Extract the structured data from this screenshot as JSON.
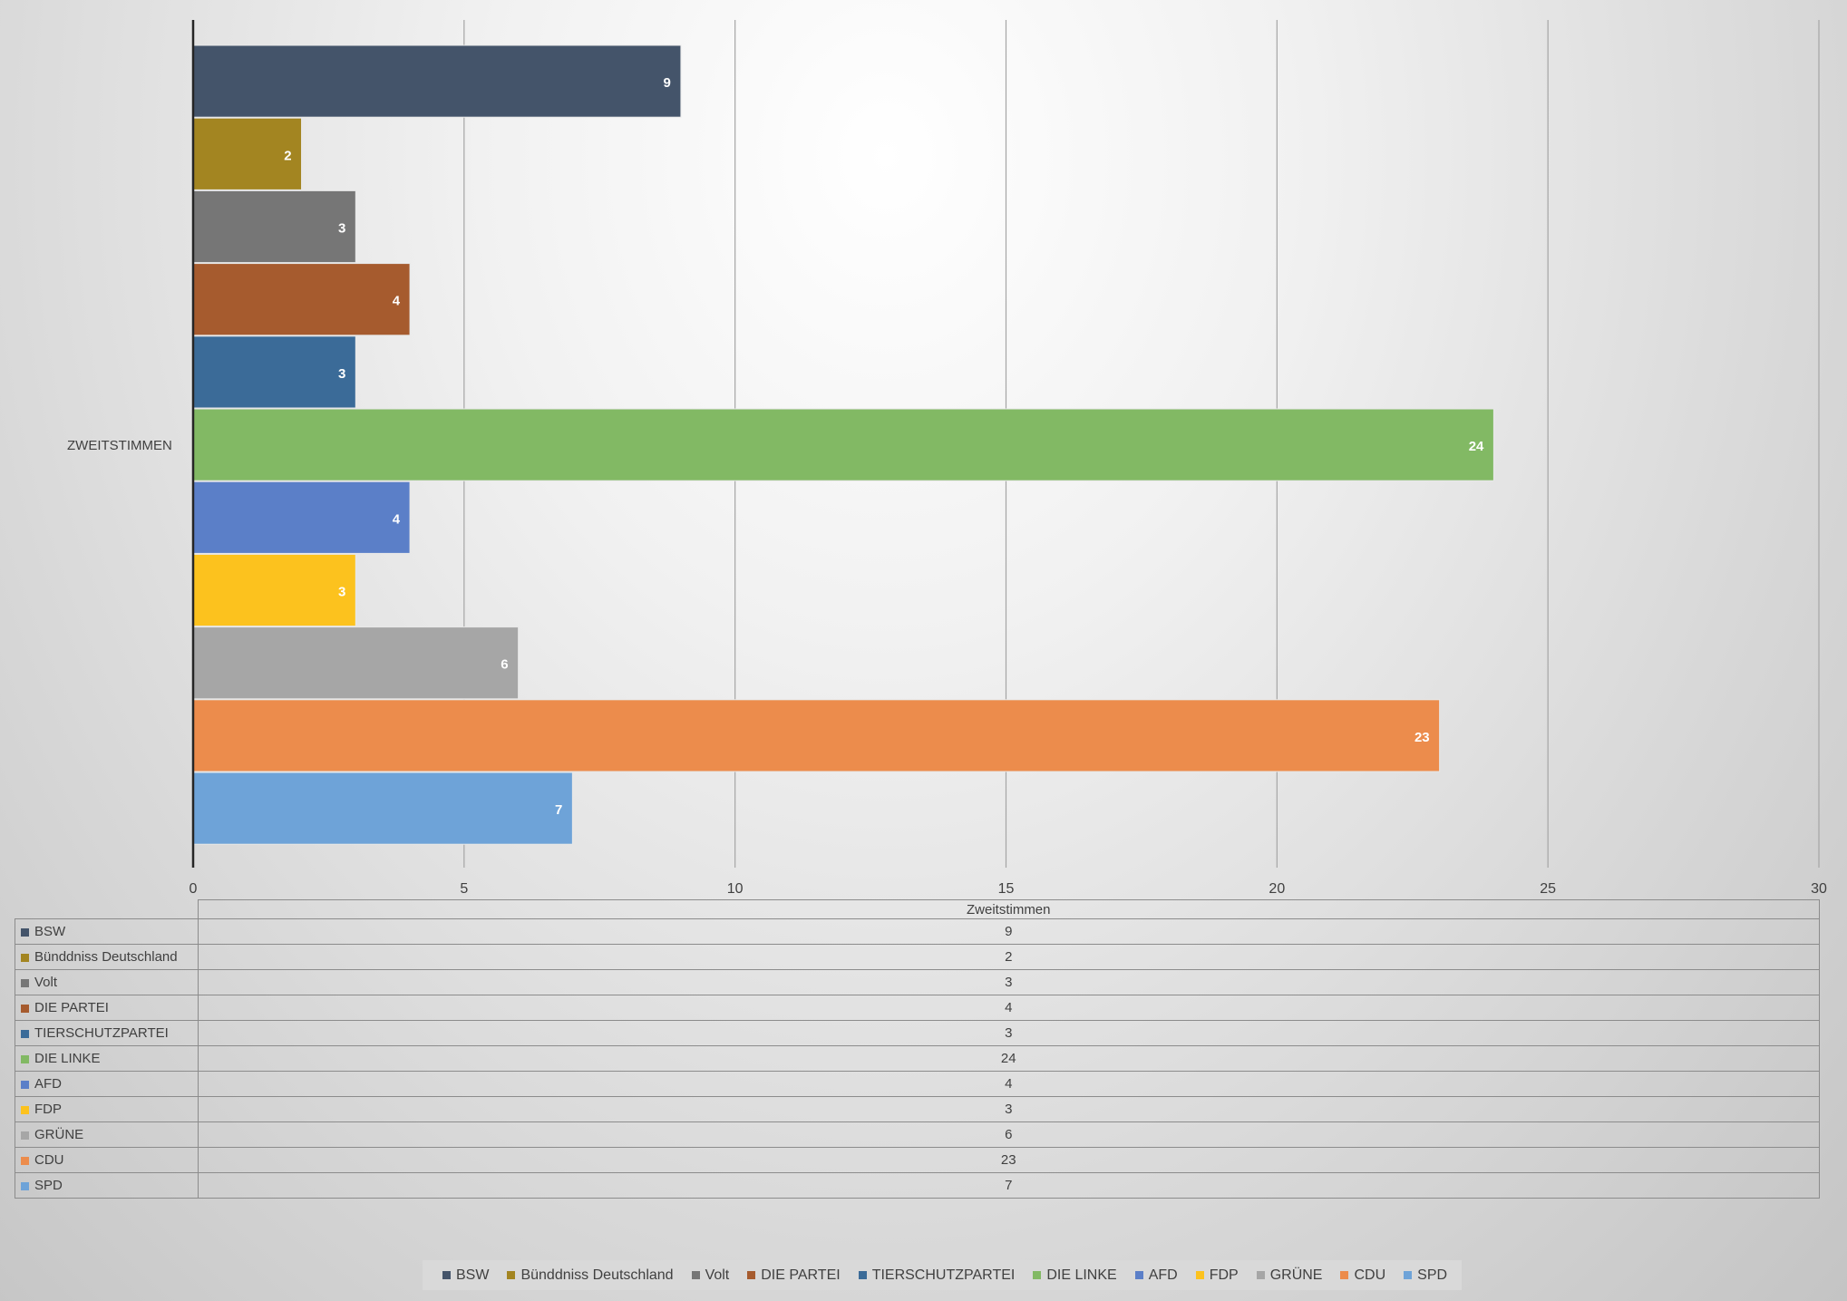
{
  "chart_data": {
    "type": "bar",
    "orientation": "horizontal",
    "category": "ZWEITSTIMMEN",
    "series": [
      {
        "name": "BSW",
        "value": 9,
        "color": "#44546a"
      },
      {
        "name": "Bünddniss Deutschland",
        "value": 2,
        "color": "#a38521"
      },
      {
        "name": "Volt",
        "value": 3,
        "color": "#767676"
      },
      {
        "name": "DIE PARTEI",
        "value": 4,
        "color": "#a65b2e"
      },
      {
        "name": "TIERSCHUTZPARTEI",
        "value": 3,
        "color": "#3b6b98"
      },
      {
        "name": "DIE LINKE",
        "value": 24,
        "color": "#82b964"
      },
      {
        "name": "AFD",
        "value": 4,
        "color": "#5b7fc8"
      },
      {
        "name": "FDP",
        "value": 3,
        "color": "#fcc21e"
      },
      {
        "name": "GRÜNE",
        "value": 6,
        "color": "#a6a6a6"
      },
      {
        "name": "CDU",
        "value": 23,
        "color": "#ec8c4c"
      },
      {
        "name": "SPD",
        "value": 7,
        "color": "#6ea3d8"
      }
    ],
    "xlim": [
      0,
      30
    ],
    "xticks": [
      0,
      5,
      10,
      15,
      20,
      25,
      30
    ],
    "grid": true,
    "data_table": true,
    "legend_position": "bottom",
    "table_header": "Zweitstimmen"
  }
}
